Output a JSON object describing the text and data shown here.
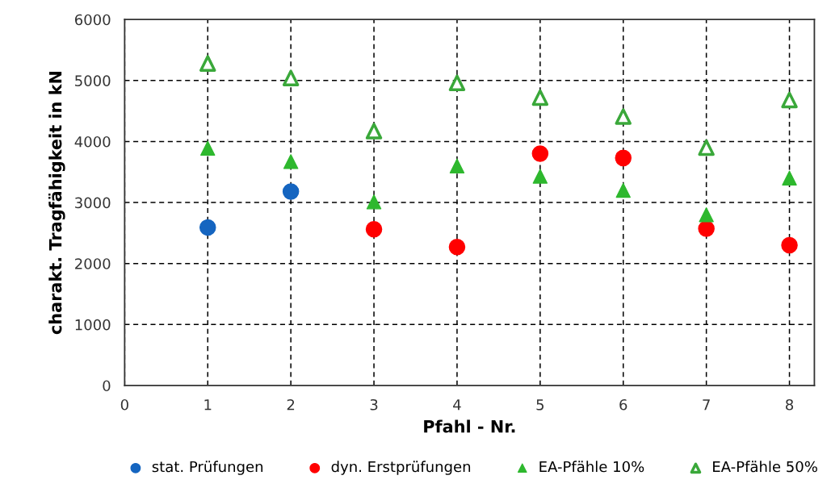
{
  "chart_data": {
    "type": "scatter",
    "xlabel": "Pfahl - Nr.",
    "ylabel": "charakt. Tragfähigkeit in kN",
    "series": [
      {
        "name": "stat. Prüfungen",
        "color": "#1565c0",
        "marker": "circle",
        "x": [
          1,
          2
        ],
        "values": [
          2590,
          3180
        ]
      },
      {
        "name": "dyn. Erstprüfungen",
        "color": "#ff0000",
        "marker": "circle",
        "x": [
          3,
          4,
          5,
          6,
          7,
          8
        ],
        "values": [
          2560,
          2270,
          3800,
          3730,
          2570,
          2300
        ]
      },
      {
        "name": "EA-Pfähle 10%",
        "color": "#2eb82e",
        "marker": "triangle",
        "x": [
          1,
          2,
          3,
          4,
          5,
          6,
          7,
          8
        ],
        "values": [
          3890,
          3670,
          3010,
          3600,
          3430,
          3200,
          2800,
          3400
        ]
      },
      {
        "name": "EA-Pfähle 50%",
        "color": "#3aa83a",
        "marker": "triangle-open",
        "x": [
          1,
          2,
          3,
          4,
          5,
          6,
          7,
          8
        ],
        "values": [
          5280,
          5040,
          4170,
          4960,
          4720,
          4410,
          3900,
          4680
        ]
      }
    ],
    "xlim": [
      0,
      8.3
    ],
    "xticks": [
      0,
      1,
      2,
      3,
      4,
      5,
      6,
      7,
      8
    ],
    "ylim": [
      0,
      6000
    ],
    "yticks": [
      0,
      1000,
      2000,
      3000,
      4000,
      5000,
      6000
    ],
    "grid": true,
    "legend": "bottom"
  }
}
